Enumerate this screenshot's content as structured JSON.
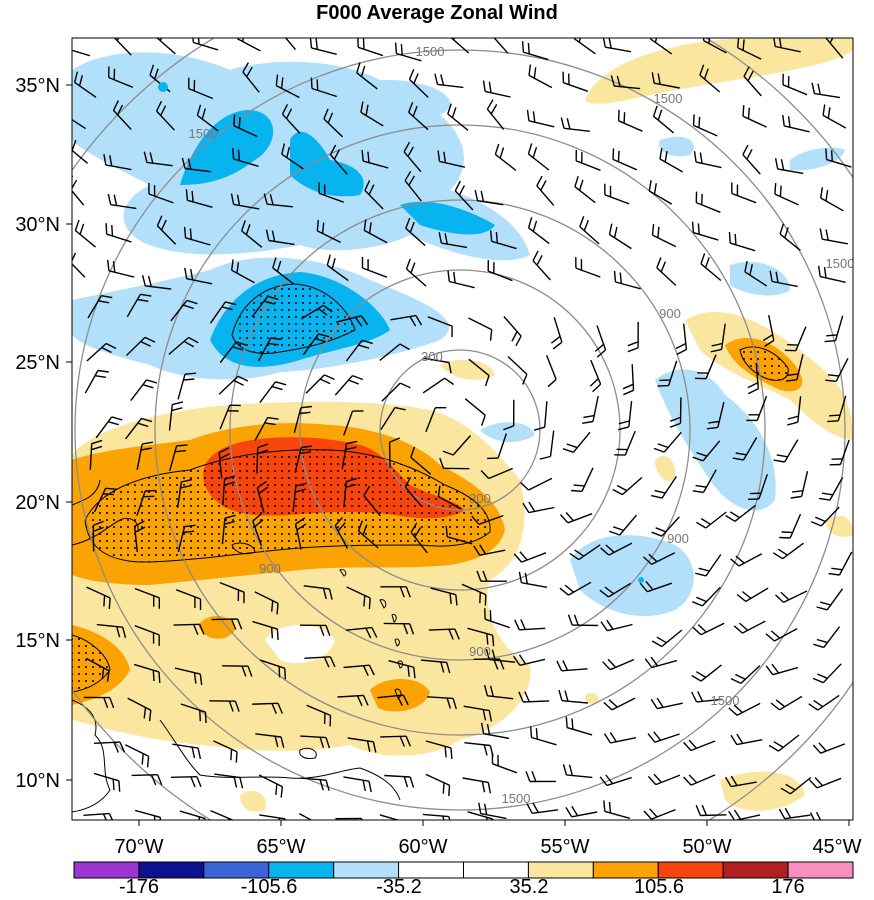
{
  "title": "F000 Average Zonal Wind",
  "map": {
    "latitude_labels": [
      "35°N",
      "30°N",
      "25°N",
      "20°N",
      "15°N",
      "10°N"
    ],
    "longitude_labels": [
      "70°W",
      "65°W",
      "60°W",
      "55°W",
      "50°W",
      "45°W"
    ],
    "contour_labels": [
      "1500",
      "1500",
      "1500",
      "1500",
      "1500",
      "1500",
      "900",
      "900",
      "900",
      "900",
      "300",
      "300"
    ]
  },
  "colorbar": {
    "colors": [
      "#9a35cf",
      "#0d108f",
      "#3d63d9",
      "#08b4f0",
      "#b2dffa",
      "#ffffff",
      "#ffffff",
      "#fbe6a0",
      "#fba303",
      "#f9440b",
      "#b12020",
      "#f98fc0"
    ],
    "tick_labels": [
      "-176",
      "-105.6",
      "-35.2",
      "35.2",
      "105.6",
      "176"
    ]
  }
}
